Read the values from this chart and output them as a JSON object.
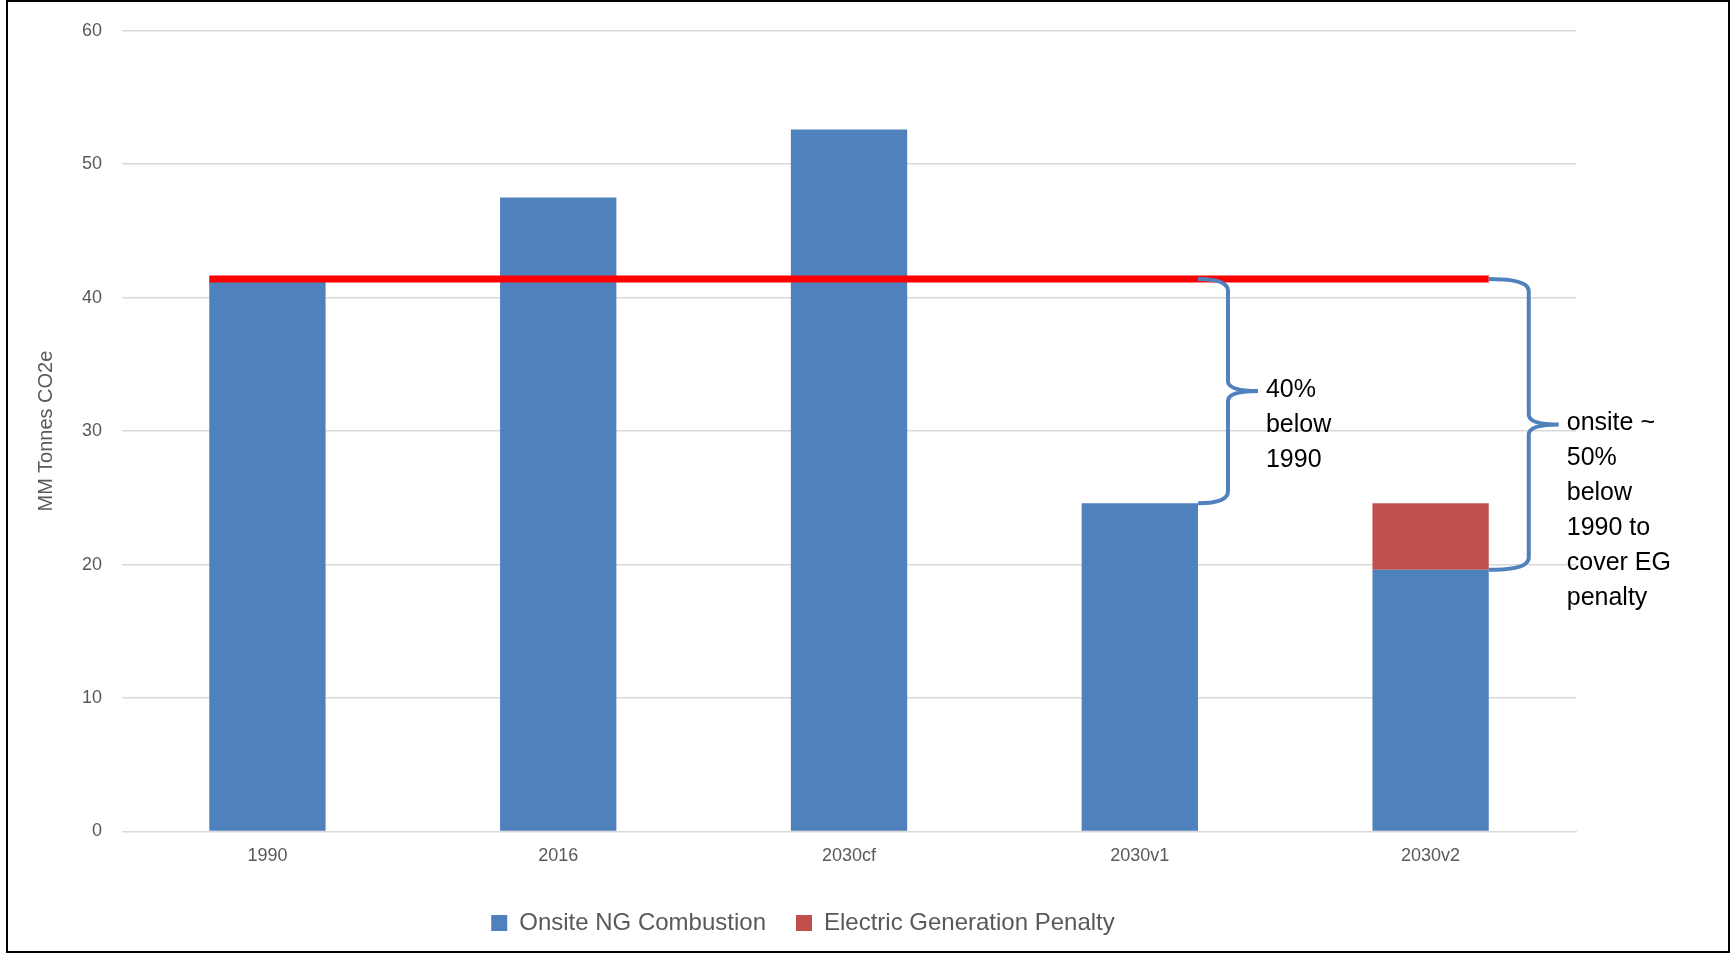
{
  "chart_data": {
    "type": "bar",
    "stacked": true,
    "ylabel": "MM Tonnes CO2e",
    "categories": [
      "1990",
      "2016",
      "2030cf",
      "2030v1",
      "2030v2"
    ],
    "series": [
      {
        "name": "Onsite NG Combustion",
        "color": "#4f81bd",
        "values": [
          41.2,
          47.5,
          52.6,
          24.6,
          19.6
        ]
      },
      {
        "name": "Electric Generation Penalty",
        "color": "#c0504d",
        "values": [
          null,
          null,
          null,
          null,
          5.0
        ]
      }
    ],
    "ylim": [
      0,
      60
    ],
    "yticks": [
      0,
      10,
      20,
      30,
      40,
      50,
      60
    ],
    "grid": "y",
    "legend": "bottom",
    "ref_lines": [
      {
        "axis": "y",
        "value": 41.4,
        "color": "#ff0000"
      }
    ],
    "annotations": [
      "40% below 1990",
      "onsite ~ 50% below 1990 to cover EG penalty"
    ]
  }
}
